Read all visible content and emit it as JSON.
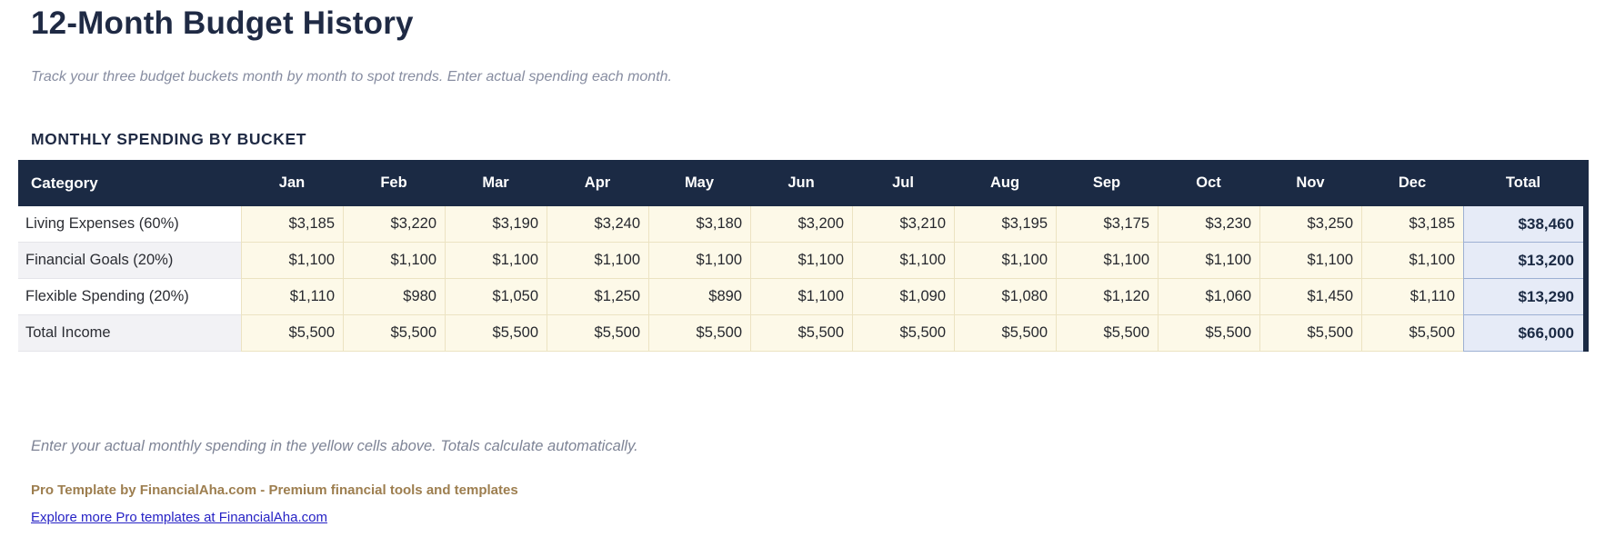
{
  "page": {
    "title": "12-Month Budget History",
    "subtitle": "Track your three budget buckets month by month to spot trends. Enter actual spending each month.",
    "section_title": "MONTHLY SPENDING BY BUCKET",
    "note": "Enter your actual monthly spending in the yellow cells above. Totals calculate automatically.",
    "footer_brand": "Pro Template by FinancialAha.com - Premium financial tools and templates",
    "footer_link": "Explore more Pro templates at FinancialAha.com"
  },
  "colors": {
    "header_navy": "#1b2a44",
    "title_navy": "#1f2a44",
    "input_cell_yellow": "#fdf9e8",
    "input_cell_border": "#ece3c2",
    "total_cell_blue": "#e6ebf7",
    "total_cell_border": "#9db0d3",
    "category_stripe": "#f2f2f5",
    "muted_gray": "#7e8496",
    "brand_tan": "#9d7e4f",
    "link_blue": "#2622c5"
  },
  "table": {
    "columns": [
      "Category",
      "Jan",
      "Feb",
      "Mar",
      "Apr",
      "May",
      "Jun",
      "Jul",
      "Aug",
      "Sep",
      "Oct",
      "Nov",
      "Dec",
      "Total"
    ],
    "rows": [
      {
        "category": "Living Expenses (60%)",
        "values": [
          "$3,185",
          "$3,220",
          "$3,190",
          "$3,240",
          "$3,180",
          "$3,200",
          "$3,210",
          "$3,195",
          "$3,175",
          "$3,230",
          "$3,250",
          "$3,185"
        ],
        "total": "$38,460"
      },
      {
        "category": "Financial Goals (20%)",
        "values": [
          "$1,100",
          "$1,100",
          "$1,100",
          "$1,100",
          "$1,100",
          "$1,100",
          "$1,100",
          "$1,100",
          "$1,100",
          "$1,100",
          "$1,100",
          "$1,100"
        ],
        "total": "$13,200"
      },
      {
        "category": "Flexible Spending (20%)",
        "values": [
          "$1,110",
          "$980",
          "$1,050",
          "$1,250",
          "$890",
          "$1,100",
          "$1,090",
          "$1,080",
          "$1,120",
          "$1,060",
          "$1,450",
          "$1,110"
        ],
        "total": "$13,290"
      },
      {
        "category": "Total Income",
        "values": [
          "$5,500",
          "$5,500",
          "$5,500",
          "$5,500",
          "$5,500",
          "$5,500",
          "$5,500",
          "$5,500",
          "$5,500",
          "$5,500",
          "$5,500",
          "$5,500"
        ],
        "total": "$66,000"
      }
    ]
  }
}
